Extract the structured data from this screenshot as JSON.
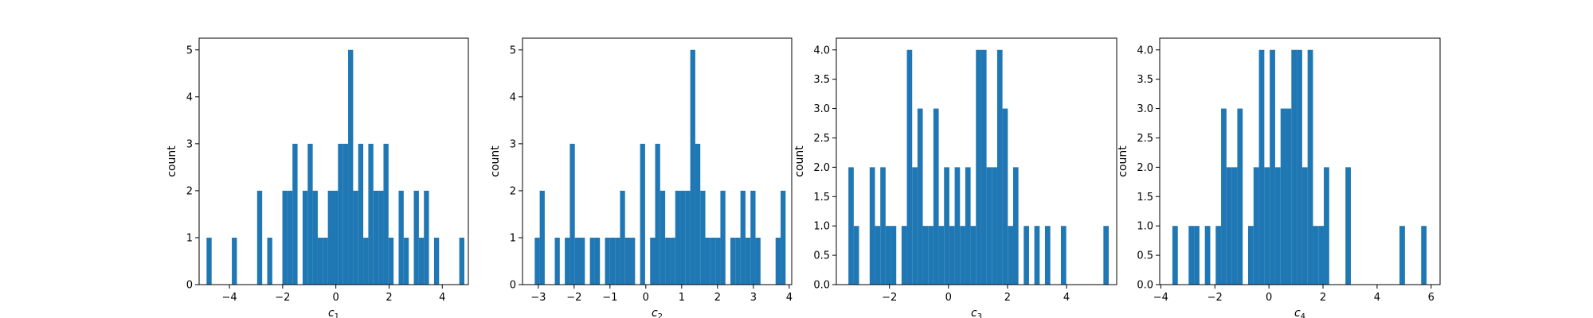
{
  "chart_data": [
    {
      "type": "histogram",
      "xlabel": "c",
      "xlabel_sub": "1",
      "ylabel": "count",
      "xlim": [
        -5.14,
        4.98
      ],
      "ylim": [
        0,
        5.25
      ],
      "xticks": [
        -4,
        -2,
        0,
        2,
        4
      ],
      "yticks": [
        0,
        1,
        2,
        3,
        4,
        5
      ],
      "bin_edges": [
        -4.86,
        -4.67,
        -4.48,
        -4.29,
        -4.1,
        -3.91,
        -3.72,
        -3.53,
        -3.34,
        -3.15,
        -2.96,
        -2.77,
        -2.58,
        -2.39,
        -2.2,
        -2.01,
        -1.82,
        -1.63,
        -1.44,
        -1.25,
        -1.06,
        -0.87,
        -0.68,
        -0.49,
        -0.3,
        -0.11,
        0.08,
        0.27,
        0.46,
        0.65,
        0.84,
        1.03,
        1.22,
        1.41,
        1.6,
        1.79,
        1.98,
        2.17,
        2.36,
        2.55,
        2.74,
        2.93,
        3.12,
        3.31,
        3.5,
        3.69,
        3.88,
        4.07,
        4.26,
        4.45,
        4.64,
        4.83
      ],
      "counts": [
        1,
        0,
        0,
        0,
        0,
        1,
        0,
        0,
        0,
        0,
        2,
        0,
        1,
        0,
        0,
        2,
        2,
        3,
        0,
        2,
        3,
        2,
        1,
        1,
        2,
        2,
        3,
        3,
        5,
        2,
        3,
        1,
        3,
        2,
        2,
        3,
        1,
        0,
        2,
        1,
        0,
        2,
        1,
        2,
        0,
        1,
        0,
        0,
        0,
        0,
        1
      ]
    },
    {
      "type": "histogram",
      "xlabel": "c",
      "xlabel_sub": "2",
      "ylabel": "count",
      "xlim": [
        -3.44,
        4.07
      ],
      "ylim": [
        0,
        5.25
      ],
      "xticks": [
        -3,
        -2,
        -1,
        0,
        1,
        2,
        3,
        4
      ],
      "yticks": [
        0,
        1,
        2,
        3,
        4,
        5
      ],
      "bin_edges": [
        -3.1,
        -2.96,
        -2.82,
        -2.68,
        -2.54,
        -2.4,
        -2.26,
        -2.12,
        -1.98,
        -1.84,
        -1.7,
        -1.56,
        -1.42,
        -1.28,
        -1.14,
        -1.0,
        -0.86,
        -0.72,
        -0.58,
        -0.44,
        -0.3,
        -0.16,
        -0.02,
        0.12,
        0.26,
        0.4,
        0.54,
        0.68,
        0.82,
        0.96,
        1.1,
        1.24,
        1.38,
        1.52,
        1.66,
        1.8,
        1.94,
        2.08,
        2.22,
        2.36,
        2.5,
        2.64,
        2.78,
        2.92,
        3.06,
        3.2,
        3.34,
        3.48,
        3.62,
        3.76,
        3.9
      ],
      "counts": [
        1,
        2,
        0,
        0,
        1,
        0,
        1,
        3,
        1,
        1,
        0,
        1,
        1,
        0,
        1,
        1,
        1,
        2,
        1,
        1,
        0,
        3,
        0,
        1,
        3,
        2,
        1,
        1,
        2,
        2,
        2,
        5,
        3,
        2,
        1,
        1,
        1,
        2,
        0,
        1,
        1,
        2,
        1,
        2,
        1,
        0,
        0,
        0,
        1,
        2
      ]
    },
    {
      "type": "histogram",
      "xlabel": "c",
      "xlabel_sub": "3",
      "ylabel": "count",
      "xlim": [
        -3.8,
        5.7
      ],
      "ylim": [
        0,
        4.2
      ],
      "xticks": [
        -2,
        0,
        2,
        4
      ],
      "yticks": [
        0.0,
        0.5,
        1.0,
        1.5,
        2.0,
        2.5,
        3.0,
        3.5,
        4.0
      ],
      "bin_edges": [
        -3.39,
        -3.21,
        -3.03,
        -2.85,
        -2.67,
        -2.49,
        -2.31,
        -2.13,
        -1.95,
        -1.77,
        -1.59,
        -1.41,
        -1.23,
        -1.05,
        -0.87,
        -0.69,
        -0.51,
        -0.33,
        -0.15,
        0.03,
        0.21,
        0.39,
        0.57,
        0.75,
        0.93,
        1.11,
        1.29,
        1.47,
        1.65,
        1.83,
        2.01,
        2.19,
        2.37,
        2.55,
        2.73,
        2.91,
        3.09,
        3.27,
        3.45,
        3.63,
        3.81,
        3.99,
        4.17,
        4.35,
        4.53,
        4.71,
        4.89,
        5.07,
        5.25,
        5.43
      ],
      "counts": [
        2,
        1,
        0,
        0,
        2,
        1,
        2,
        1,
        1,
        0,
        1,
        4,
        2,
        3,
        1,
        1,
        3,
        1,
        2,
        1,
        2,
        1,
        2,
        1,
        4,
        4,
        2,
        2,
        4,
        3,
        1,
        2,
        0,
        1,
        0,
        1,
        0,
        1,
        0,
        0,
        1,
        0,
        0,
        0,
        0,
        0,
        0,
        0,
        1
      ]
    },
    {
      "type": "histogram",
      "xlabel": "c",
      "xlabel_sub": "4",
      "ylabel": "count",
      "xlim": [
        -4.04,
        6.33
      ],
      "ylim": [
        0,
        4.2
      ],
      "xticks": [
        -4,
        -2,
        0,
        2,
        4,
        6
      ],
      "yticks": [
        0.0,
        0.5,
        1.0,
        1.5,
        2.0,
        2.5,
        3.0,
        3.5,
        4.0
      ],
      "bin_edges": [
        -3.57,
        -3.37,
        -3.17,
        -2.97,
        -2.77,
        -2.57,
        -2.37,
        -2.17,
        -1.97,
        -1.77,
        -1.57,
        -1.37,
        -1.17,
        -0.97,
        -0.77,
        -0.57,
        -0.37,
        -0.17,
        0.03,
        0.23,
        0.43,
        0.63,
        0.83,
        1.03,
        1.23,
        1.43,
        1.63,
        1.83,
        2.03,
        2.23,
        2.43,
        2.63,
        2.83,
        3.03,
        3.23,
        3.43,
        3.63,
        3.83,
        4.03,
        4.23,
        4.43,
        4.63,
        4.83,
        5.03,
        5.23,
        5.43,
        5.63,
        5.83
      ],
      "counts": [
        1,
        0,
        0,
        1,
        1,
        0,
        1,
        0,
        1,
        3,
        2,
        2,
        3,
        0,
        1,
        2,
        4,
        2,
        4,
        2,
        3,
        3,
        4,
        4,
        2,
        4,
        1,
        1,
        2,
        0,
        0,
        0,
        2,
        0,
        0,
        0,
        0,
        0,
        0,
        0,
        0,
        0,
        1,
        0,
        0,
        0,
        1
      ]
    }
  ]
}
